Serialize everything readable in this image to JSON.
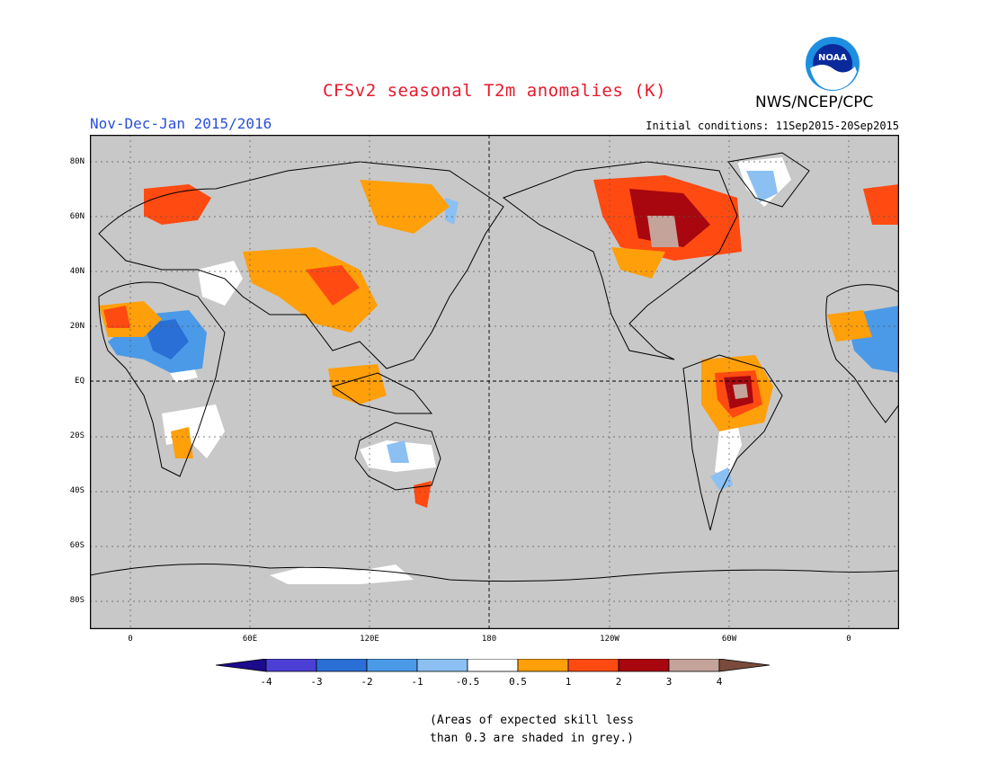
{
  "title": "CFSv2 seasonal T2m anomalies (K)",
  "period": "Nov-Dec-Jan 2015/2016",
  "initial_conditions": "Initial conditions: 11Sep2015-20Sep2015",
  "agency": "NWS/NCEP/CPC",
  "logo_text": "NOAA",
  "lat_labels": [
    "80N",
    "60N",
    "40N",
    "20N",
    "EQ",
    "20S",
    "40S",
    "60S",
    "80S"
  ],
  "lon_labels": [
    "0",
    "60E",
    "120E",
    "180",
    "120W",
    "60W",
    "0"
  ],
  "colorbar": {
    "labels": [
      "-4",
      "-3",
      "-2",
      "-1",
      "-0.5",
      "0.5",
      "1",
      "2",
      "3",
      "4"
    ],
    "colors": [
      "#1c0b8c",
      "#4b3fd6",
      "#2a6fd6",
      "#4b9ae8",
      "#8cc0f2",
      "#ffffff",
      "#ff9f0a",
      "#ff4a12",
      "#a8070f",
      "#c4a39a",
      "#7a4b3c"
    ]
  },
  "note_lines": [
    "(Areas of expected skill less",
    "than 0.3 are shaded in grey.)"
  ],
  "colors": {
    "ocean_grey": "#c8c8c8",
    "title_red": "#e8192c",
    "period_blue": "#2a50d8"
  }
}
